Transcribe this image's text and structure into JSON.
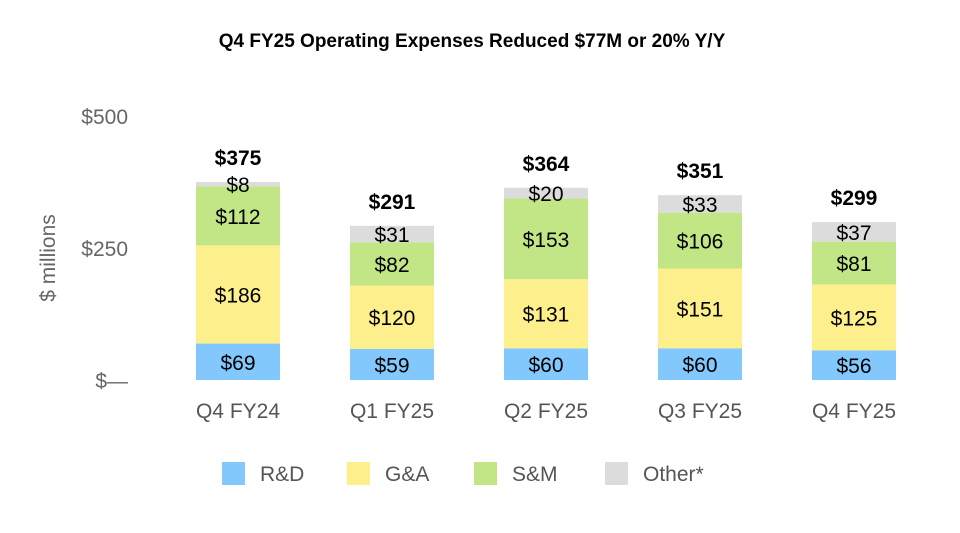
{
  "chart_data": {
    "type": "bar",
    "stacked": true,
    "title": "Q4 FY25 Operating Expenses Reduced $77M or 20% Y/Y",
    "ylabel": "$ millions",
    "xlabel": "",
    "ylim": [
      0,
      500
    ],
    "yticks": [
      {
        "value": 0,
        "label": "$—"
      },
      {
        "value": 250,
        "label": "$250"
      },
      {
        "value": 500,
        "label": "$500"
      }
    ],
    "grid": false,
    "legend_position": "bottom",
    "categories": [
      "Q4 FY24",
      "Q1 FY25",
      "Q2 FY25",
      "Q3 FY25",
      "Q4 FY25"
    ],
    "totals": [
      375,
      291,
      364,
      351,
      299
    ],
    "series": [
      {
        "name": "R&D",
        "color": "#82c8fc",
        "values": [
          69,
          59,
          60,
          60,
          56
        ]
      },
      {
        "name": "G&A",
        "color": "#fdef8c",
        "values": [
          186,
          120,
          131,
          151,
          125
        ]
      },
      {
        "name": "S&M",
        "color": "#c2e685",
        "values": [
          112,
          82,
          153,
          106,
          81
        ]
      },
      {
        "name": "Other*",
        "color": "#dcdcdc",
        "values": [
          8,
          31,
          20,
          33,
          37
        ]
      }
    ]
  }
}
